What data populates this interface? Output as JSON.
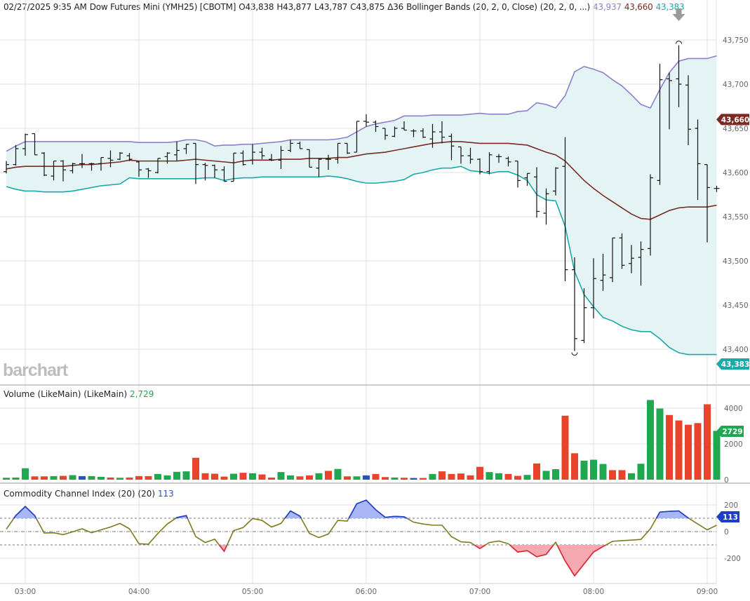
{
  "header": {
    "datetime": "02/27/2025 9:35 AM",
    "symbol": "Dow Futures Mini (YMH25) [CBOTM]",
    "open": "O43,838",
    "high": "H43,877",
    "low": "L43,787",
    "close": "C43,875",
    "change": "Δ36",
    "study": "Bollinger Bands (20, 2, 0, Close)",
    "study_params": "(20, 2, 0, ...)",
    "bb_upper": "43,937",
    "bb_middle": "43,660",
    "bb_lower": "43,383"
  },
  "logo": "barchart",
  "colors": {
    "up": "#1fa84f",
    "down": "#e8442c",
    "neutral": "#2a55b5",
    "bb_upper": "#8a80cc",
    "bb_middle": "#7a2a22",
    "bb_lower": "#1aa9a6",
    "bb_fill": "#e4f4f5",
    "cci_line": "#7d7a1c",
    "cci_over": "#1c3fc8",
    "cci_over_fill": "#a8b6f5",
    "cci_under": "#e0283c",
    "cci_under_fill": "#f6a9b1"
  },
  "volume_pane": {
    "title": "Volume (LikeMain)  (LikeMain)",
    "value": "2,729",
    "badge": "2729"
  },
  "cci_pane": {
    "title": "Commodity Channel Index (20)  (20)",
    "value": "113",
    "badge": "113"
  },
  "price_badges": {
    "middle": "43,660",
    "lower": "43,383"
  },
  "chart_data": [
    {
      "type": "ohlc",
      "ylim": [
        43383,
        43780
      ],
      "yticks": [
        "43,400",
        "43,450",
        "43,500",
        "43,550",
        "43,600",
        "43,650",
        "43,700",
        "43,750"
      ],
      "ytick_values": [
        43400,
        43450,
        43500,
        43550,
        43600,
        43650,
        43700,
        43750
      ],
      "xticks": [
        "03:00",
        "04:00",
        "05:00",
        "06:00",
        "07:00",
        "08:00",
        "09:00"
      ],
      "x": [
        "02:50",
        "02:55",
        "03:00",
        "03:05",
        "03:10",
        "03:15",
        "03:20",
        "03:25",
        "03:30",
        "03:35",
        "03:40",
        "03:45",
        "03:50",
        "03:55",
        "04:00",
        "04:05",
        "04:10",
        "04:15",
        "04:20",
        "04:25",
        "04:30",
        "04:35",
        "04:40",
        "04:45",
        "04:50",
        "04:55",
        "05:00",
        "05:05",
        "05:10",
        "05:15",
        "05:20",
        "05:25",
        "05:30",
        "05:35",
        "05:40",
        "05:45",
        "05:50",
        "05:55",
        "06:00",
        "06:05",
        "06:10",
        "06:15",
        "06:20",
        "06:25",
        "06:30",
        "06:35",
        "06:40",
        "06:45",
        "06:50",
        "06:55",
        "07:00",
        "07:05",
        "07:10",
        "07:15",
        "07:20",
        "07:25",
        "07:30",
        "07:35",
        "07:40",
        "07:45",
        "07:50",
        "07:55",
        "08:00",
        "08:05",
        "08:10",
        "08:15",
        "08:20",
        "08:25",
        "08:30",
        "08:35",
        "08:40",
        "08:45",
        "08:50",
        "08:55",
        "09:00",
        "09:05"
      ],
      "ohlc": [
        [
          43601,
          43613,
          43599,
          43609
        ],
        [
          43609,
          43631,
          43608,
          43627
        ],
        [
          43627,
          43644,
          43619,
          43643
        ],
        [
          43644,
          43644,
          43620,
          43620
        ],
        [
          43622,
          43623,
          43596,
          43597
        ],
        [
          43596,
          43613,
          43591,
          43613
        ],
        [
          43613,
          43614,
          43590,
          43603
        ],
        [
          43602,
          43611,
          43599,
          43610
        ],
        [
          43610,
          43621,
          43605,
          43610
        ],
        [
          43610,
          43611,
          43602,
          43610
        ],
        [
          43610,
          43617,
          43602,
          43617
        ],
        [
          43616,
          43625,
          43606,
          43614
        ],
        [
          43615,
          43623,
          43614,
          43622
        ],
        [
          43619,
          43622,
          43613,
          43615
        ],
        [
          43612,
          43613,
          43595,
          43603
        ],
        [
          43604,
          43605,
          43594,
          43602
        ],
        [
          43600,
          43616,
          43599,
          43616
        ],
        [
          43618,
          43623,
          43610,
          43622
        ],
        [
          43620,
          43635,
          43613,
          43625
        ],
        [
          43627,
          43632,
          43621,
          43632
        ],
        [
          43633,
          43633,
          43587,
          43609
        ],
        [
          43609,
          43611,
          43591,
          43608
        ],
        [
          43608,
          43609,
          43594,
          43603
        ],
        [
          43603,
          43607,
          43590,
          43590
        ],
        [
          43590,
          43622,
          43590,
          43622
        ],
        [
          43622,
          43625,
          43608,
          43609
        ],
        [
          43614,
          43632,
          43609,
          43623
        ],
        [
          43623,
          43628,
          43615,
          43619
        ],
        [
          43615,
          43621,
          43613,
          43614
        ],
        [
          43614,
          43630,
          43604,
          43625
        ],
        [
          43625,
          43637,
          43623,
          43633
        ],
        [
          43633,
          43635,
          43627,
          43627
        ],
        [
          43626,
          43626,
          43606,
          43606
        ],
        [
          43605,
          43616,
          43595,
          43615
        ],
        [
          43615,
          43620,
          43603,
          43615
        ],
        [
          43615,
          43633,
          43610,
          43633
        ],
        [
          43633,
          43633,
          43621,
          43622
        ],
        [
          43623,
          43658,
          43623,
          43658
        ],
        [
          43658,
          43666,
          43652,
          43657
        ],
        [
          43657,
          43659,
          43646,
          43652
        ],
        [
          43650,
          43650,
          43637,
          43642
        ],
        [
          43641,
          43652,
          43640,
          43650
        ],
        [
          43650,
          43658,
          43648,
          43648
        ],
        [
          43647,
          43649,
          43640,
          43647
        ],
        [
          43647,
          43650,
          43639,
          43640
        ],
        [
          43638,
          43655,
          43628,
          43646
        ],
        [
          43646,
          43658,
          43633,
          43640
        ],
        [
          43641,
          43644,
          43614,
          43630
        ],
        [
          43629,
          43629,
          43610,
          43619
        ],
        [
          43619,
          43628,
          43610,
          43615
        ],
        [
          43615,
          43616,
          43598,
          43601
        ],
        [
          43601,
          43623,
          43598,
          43620
        ],
        [
          43618,
          43621,
          43611,
          43618
        ],
        [
          43616,
          43618,
          43607,
          43612
        ],
        [
          43613,
          43613,
          43583,
          43591
        ],
        [
          43594,
          43599,
          43585,
          43599
        ],
        [
          43595,
          43606,
          43549,
          43556
        ],
        [
          43554,
          43582,
          43541,
          43576
        ],
        [
          43579,
          43606,
          43574,
          43605
        ],
        [
          43607,
          43640,
          43477,
          43490
        ],
        [
          43490,
          43504,
          43398,
          43412
        ],
        [
          43410,
          43469,
          43407,
          43447
        ],
        [
          43447,
          43503,
          43435,
          43480
        ],
        [
          43478,
          43508,
          43466,
          43484
        ],
        [
          43481,
          43526,
          43476,
          43526
        ],
        [
          43526,
          43531,
          43491,
          43495
        ],
        [
          43497,
          43518,
          43486,
          43503
        ],
        [
          43504,
          43522,
          43472,
          43513
        ],
        [
          43514,
          43598,
          43506,
          43594
        ],
        [
          43591,
          43723,
          43586,
          43705
        ],
        [
          43706,
          43713,
          43649,
          43704
        ],
        [
          43706,
          43744,
          43674,
          43700
        ],
        [
          43699,
          43710,
          43631,
          43649
        ],
        [
          43650,
          43660,
          43569,
          43610
        ],
        [
          43609,
          43609,
          43521,
          43583
        ],
        [
          43582,
          43585,
          43578,
          43582
        ]
      ],
      "bollinger": {
        "upper": [
          43624,
          43630,
          43635,
          43635,
          43635,
          43635,
          43635,
          43635,
          43635,
          43635,
          43635,
          43635,
          43635,
          43635,
          43634,
          43634,
          43634,
          43634,
          43635,
          43637,
          43637,
          43635,
          43630,
          43631,
          43631,
          43632,
          43632,
          43633,
          43634,
          43635,
          43637,
          43637,
          43637,
          43637,
          43637,
          43638,
          43640,
          43646,
          43652,
          43655,
          43657,
          43659,
          43664,
          43664,
          43664,
          43665,
          43665,
          43665,
          43665,
          43666,
          43667,
          43666,
          43666,
          43666,
          43669,
          43670,
          43679,
          43677,
          43673,
          43687,
          43714,
          43720,
          43717,
          43713,
          43705,
          43698,
          43688,
          43677,
          43673,
          43694,
          43713,
          43726,
          43729,
          43729,
          43729,
          43732
        ],
        "middle": [
          43604,
          43606,
          43607,
          43607,
          43607,
          43607,
          43607,
          43608,
          43609,
          43609,
          43610,
          43611,
          43612,
          43614,
          43613,
          43613,
          43613,
          43613,
          43613,
          43614,
          43615,
          43614,
          43613,
          43612,
          43611,
          43613,
          43614,
          43614,
          43614,
          43615,
          43615,
          43615,
          43616,
          43616,
          43616,
          43617,
          43617,
          43619,
          43621,
          43622,
          43623,
          43625,
          43627,
          43629,
          43631,
          43633,
          43634,
          43635,
          43635,
          43634,
          43633,
          43633,
          43633,
          43633,
          43632,
          43631,
          43627,
          43623,
          43620,
          43613,
          43602,
          43591,
          43582,
          43574,
          43567,
          43560,
          43553,
          43548,
          43547,
          43552,
          43557,
          43560,
          43561,
          43561,
          43561,
          43563
        ],
        "lower": [
          43584,
          43581,
          43579,
          43579,
          43578,
          43578,
          43578,
          43579,
          43581,
          43583,
          43585,
          43586,
          43587,
          43594,
          43593,
          43593,
          43593,
          43593,
          43593,
          43593,
          43593,
          43594,
          43594,
          43591,
          43593,
          43594,
          43594,
          43595,
          43595,
          43595,
          43595,
          43595,
          43595,
          43595,
          43596,
          43595,
          43593,
          43590,
          43588,
          43588,
          43589,
          43590,
          43592,
          43598,
          43600,
          43603,
          43605,
          43605,
          43607,
          43602,
          43601,
          43599,
          43601,
          43601,
          43597,
          43591,
          43575,
          43569,
          43568,
          43539,
          43488,
          43462,
          43448,
          43436,
          43432,
          43426,
          43422,
          43420,
          43420,
          43412,
          43402,
          43396,
          43394,
          43394,
          43394,
          43394
        ]
      },
      "high_marker_index": 71,
      "low_marker_index": 60
    },
    {
      "type": "bar",
      "title": "Volume (LikeMain)",
      "ylim": [
        0,
        4600
      ],
      "yticks": [
        "0",
        "2000",
        "4000"
      ],
      "ytick_values": [
        0,
        2000,
        4000
      ],
      "values": [
        106,
        120,
        640,
        186,
        186,
        200,
        213,
        253,
        200,
        200,
        160,
        120,
        106,
        120,
        200,
        200,
        320,
        240,
        440,
        466,
        1224,
        360,
        333,
        173,
        333,
        386,
        360,
        293,
        120,
        426,
        240,
        186,
        240,
        360,
        493,
        600,
        186,
        186,
        240,
        320,
        146,
        120,
        106,
        93,
        93,
        320,
        466,
        320,
        346,
        240,
        720,
        426,
        360,
        320,
        213,
        266,
        906,
        493,
        586,
        3578,
        1477,
        1064,
        1117,
        878,
        533,
        533,
        360,
        891,
        4455,
        3977,
        3618,
        3312,
        3072,
        3165,
        4216,
        2729
      ],
      "bar_colors": [
        "up",
        "up",
        "up",
        "down",
        "down",
        "up",
        "down",
        "up",
        "neutral",
        "up",
        "up",
        "down",
        "up",
        "down",
        "down",
        "down",
        "up",
        "up",
        "up",
        "up",
        "down",
        "down",
        "down",
        "down",
        "up",
        "down",
        "up",
        "down",
        "down",
        "up",
        "up",
        "down",
        "down",
        "up",
        "down",
        "up",
        "down",
        "up",
        "neutral",
        "down",
        "down",
        "up",
        "down",
        "neutral",
        "down",
        "up",
        "down",
        "down",
        "down",
        "down",
        "down",
        "up",
        "up",
        "down",
        "down",
        "up",
        "down",
        "up",
        "up",
        "down",
        "down",
        "up",
        "up",
        "up",
        "down",
        "down",
        "up",
        "up",
        "up",
        "up",
        "down",
        "down",
        "down",
        "down",
        "down",
        "up"
      ]
    },
    {
      "type": "line",
      "title": "Commodity Channel Index (20)",
      "ylim": [
        -330,
        240
      ],
      "yticks": [
        "200",
        "0",
        "-200"
      ],
      "ytick_values": [
        200,
        0,
        -200
      ],
      "overbought": 100,
      "oversold": -100,
      "values": [
        18,
        120,
        188,
        120,
        -11,
        -9,
        -23,
        -2,
        21,
        -9,
        13,
        34,
        61,
        21,
        -91,
        -95,
        -14,
        57,
        105,
        120,
        -38,
        -82,
        -57,
        -148,
        7,
        30,
        98,
        84,
        34,
        61,
        155,
        116,
        -14,
        -45,
        -18,
        84,
        79,
        209,
        236,
        164,
        107,
        114,
        111,
        71,
        57,
        48,
        48,
        -38,
        -77,
        -82,
        -127,
        -82,
        -71,
        -91,
        -154,
        -143,
        -189,
        -171,
        -80,
        -220,
        -332,
        -243,
        -154,
        -112,
        -73,
        -68,
        -64,
        -59,
        21,
        146,
        152,
        155,
        102,
        57,
        13,
        48
      ]
    }
  ]
}
